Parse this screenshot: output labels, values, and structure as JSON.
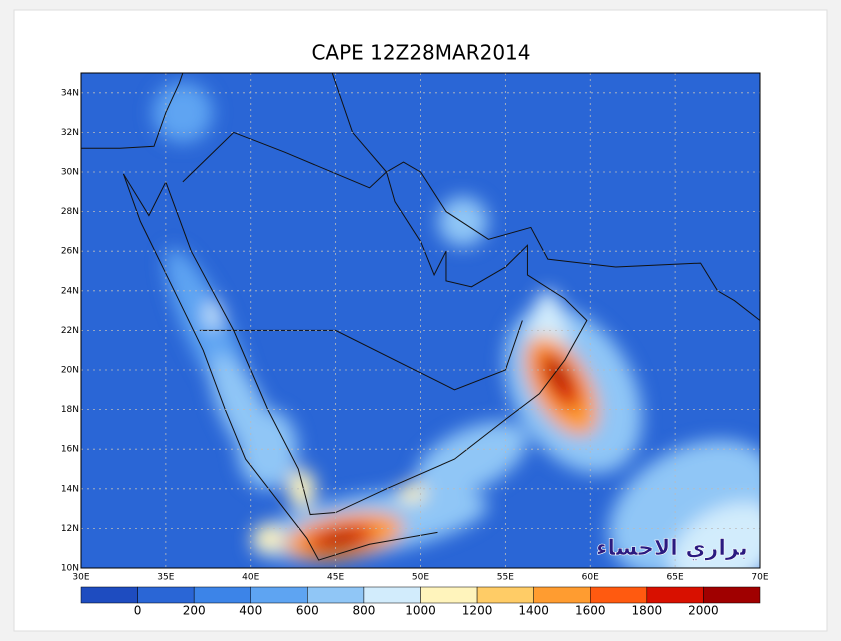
{
  "title": "CAPE 12Z28MAR2014",
  "lat_labels": [
    "10N",
    "12N",
    "14N",
    "16N",
    "18N",
    "20N",
    "22N",
    "24N",
    "26N",
    "28N",
    "30N",
    "32N",
    "34N"
  ],
  "lon_labels": [
    "30E",
    "35E",
    "40E",
    "45E",
    "50E",
    "55E",
    "60E",
    "65E",
    "70E"
  ],
  "colorbar": {
    "labels": [
      0,
      200,
      400,
      600,
      800,
      1000,
      1200,
      1400,
      1600,
      1800,
      2000
    ],
    "colors": [
      "#1e4cc0",
      "#2a66d6",
      "#3c84e8",
      "#5ea4f2",
      "#90c6f6",
      "#d2ecfc",
      "#fff4bc",
      "#ffcc66",
      "#ff9c30",
      "#ff5a10",
      "#d81000",
      "#a00000"
    ]
  },
  "watermark": "براري الاحساء"
}
